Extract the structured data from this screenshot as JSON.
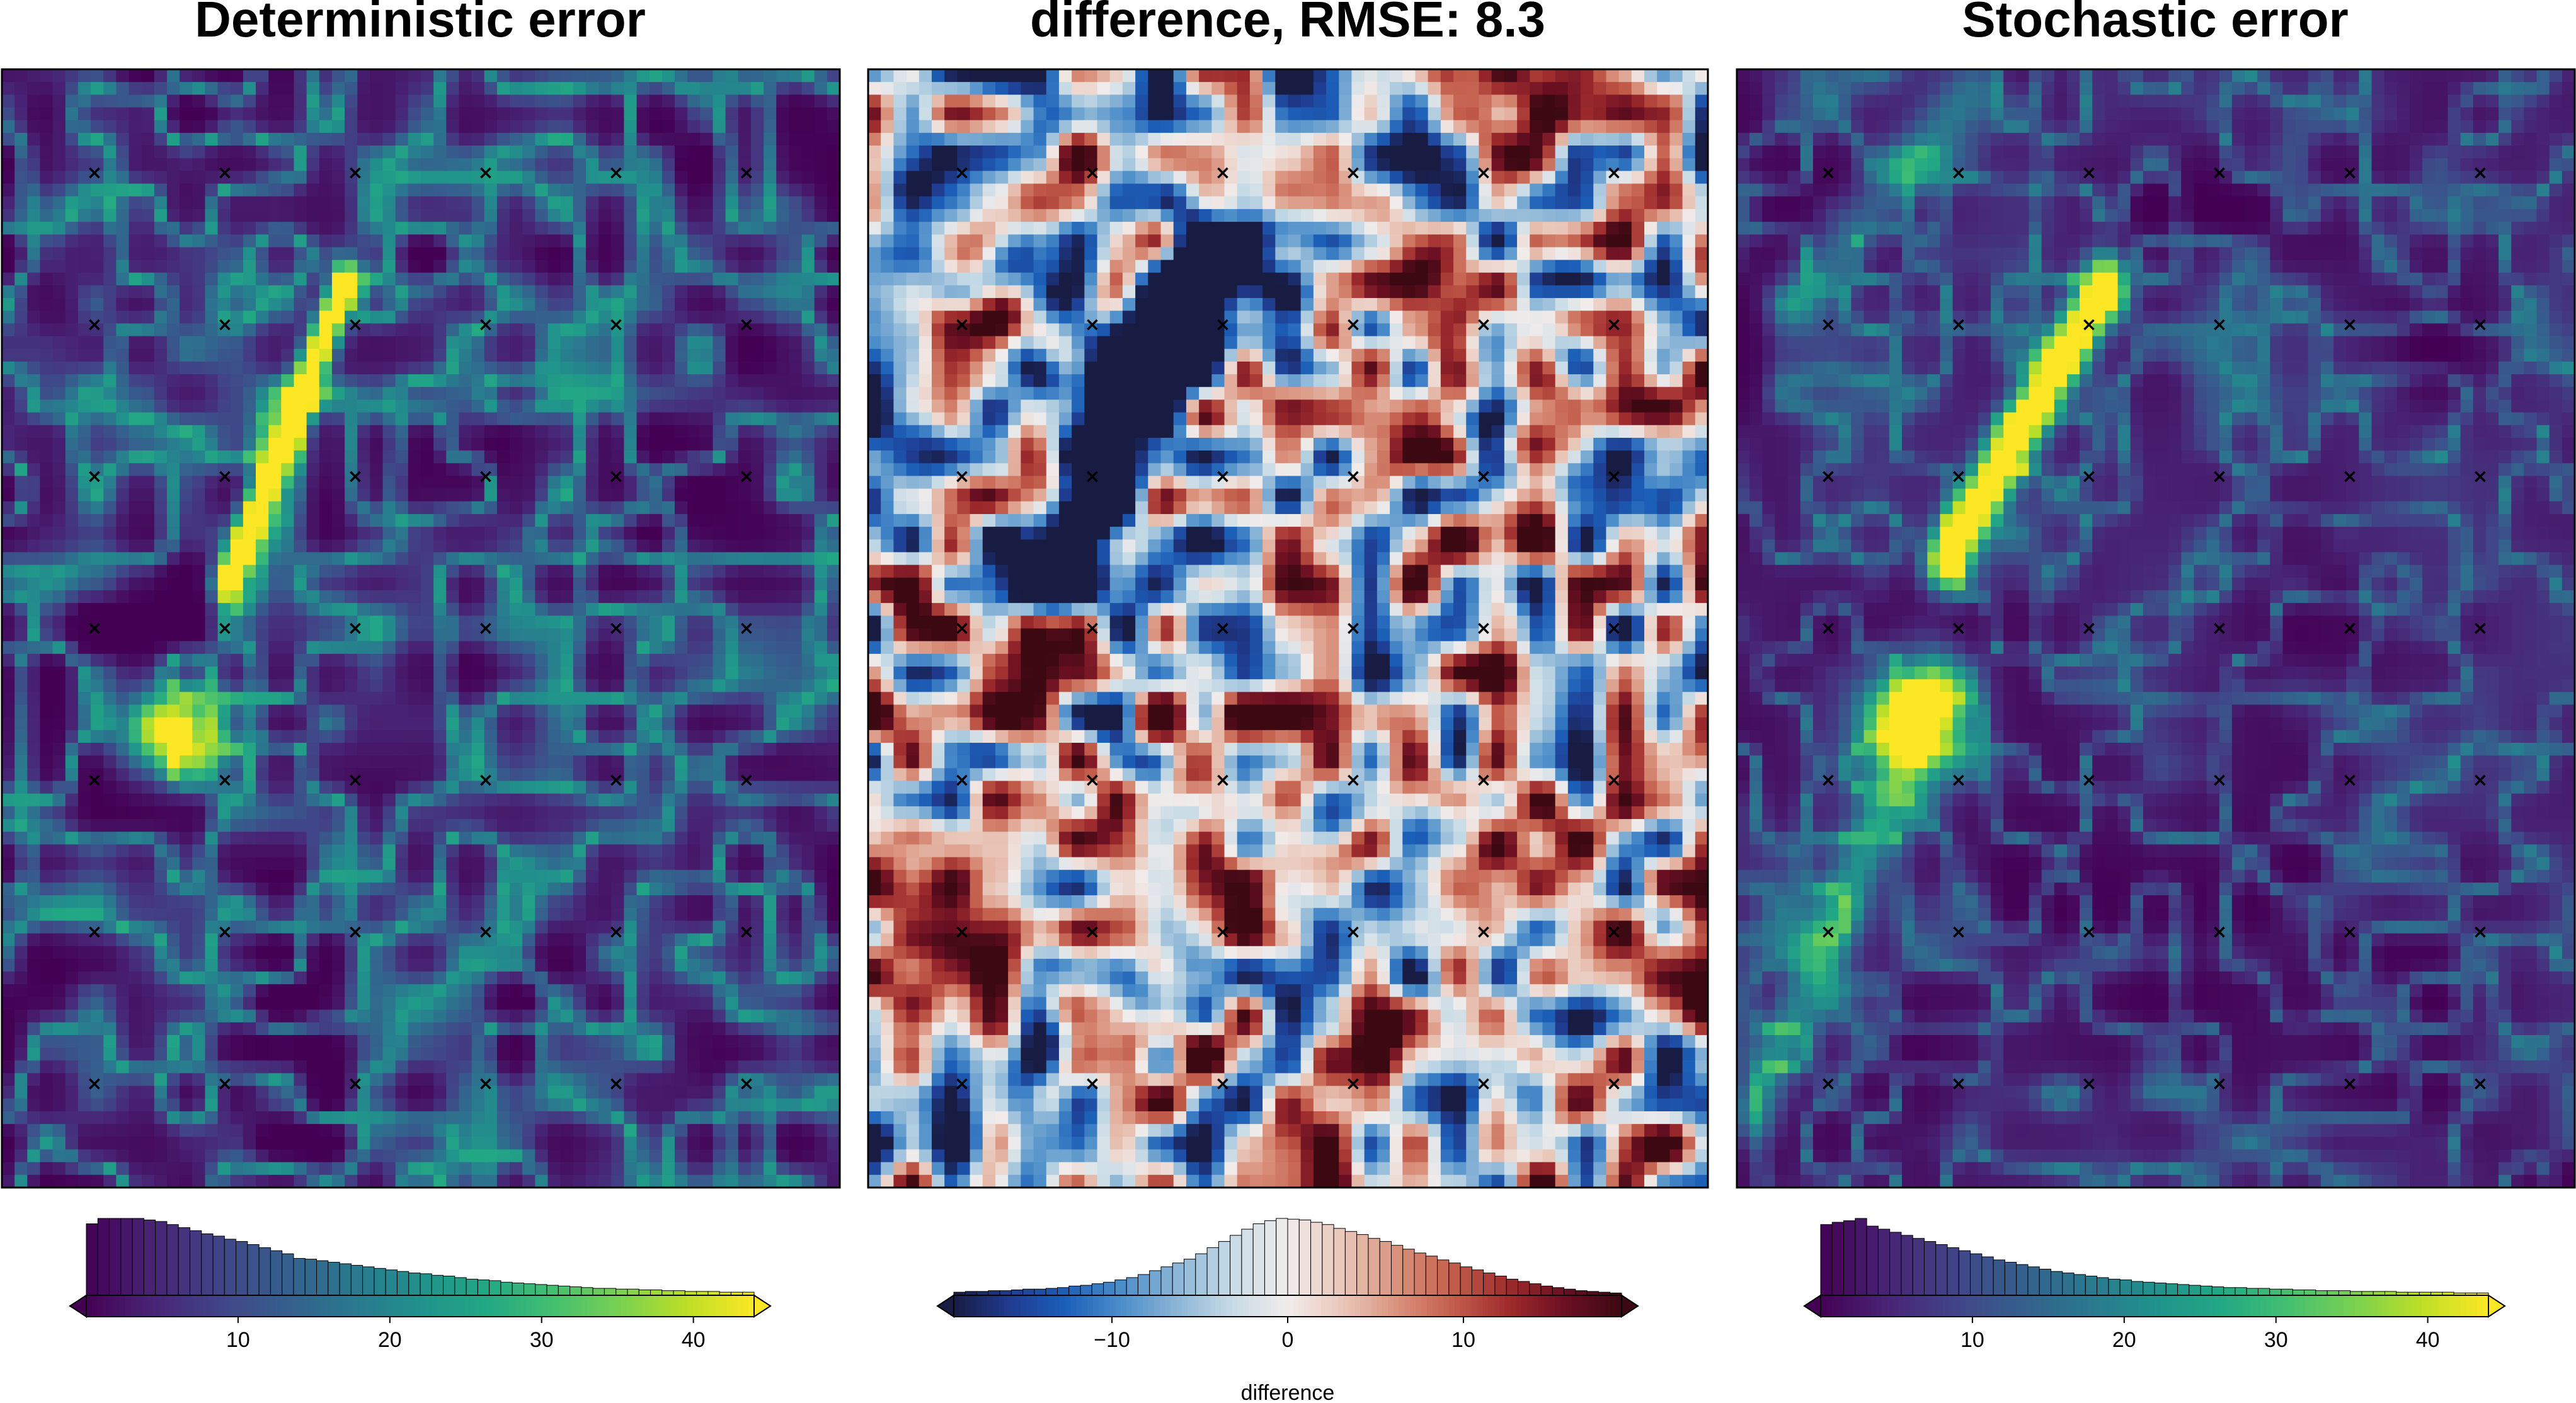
{
  "chart_data": [
    {
      "type": "heatmap",
      "title": "Deterministic error",
      "colormap": "viridis",
      "color_range": [
        0,
        44
      ],
      "grid": false,
      "markers": {
        "symbol": "×",
        "rows": 7,
        "cols": 6
      },
      "colorbar": {
        "ticks": [
          10,
          20,
          30,
          40
        ],
        "tick_labels": [
          "10",
          "20",
          "30",
          "40"
        ],
        "label": "",
        "histogram": [
          0.93,
          1.0,
          1.0,
          1.0,
          1.0,
          0.98,
          0.96,
          0.92,
          0.88,
          0.84,
          0.8,
          0.77,
          0.73,
          0.7,
          0.66,
          0.62,
          0.58,
          0.54,
          0.48,
          0.47,
          0.45,
          0.43,
          0.41,
          0.39,
          0.37,
          0.35,
          0.33,
          0.31,
          0.29,
          0.28,
          0.26,
          0.25,
          0.23,
          0.21,
          0.2,
          0.19,
          0.17,
          0.16,
          0.15,
          0.14,
          0.13,
          0.12,
          0.11,
          0.1,
          0.09,
          0.09,
          0.08,
          0.08,
          0.07,
          0.07,
          0.06,
          0.06,
          0.05,
          0.05,
          0.05,
          0.04,
          0.04,
          0.04
        ]
      }
    },
    {
      "type": "heatmap",
      "title": "difference, RMSE: 8.3",
      "colormap": "balance",
      "color_range": [
        -19,
        19
      ],
      "grid": false,
      "markers": {
        "symbol": "×",
        "rows": 7,
        "cols": 6
      },
      "colorbar": {
        "ticks": [
          -10,
          0,
          10
        ],
        "tick_labels": [
          "−10",
          "0",
          "10"
        ],
        "label": "difference",
        "histogram": [
          0.04,
          0.05,
          0.05,
          0.06,
          0.06,
          0.07,
          0.08,
          0.08,
          0.09,
          0.1,
          0.12,
          0.13,
          0.15,
          0.17,
          0.2,
          0.23,
          0.27,
          0.32,
          0.37,
          0.42,
          0.47,
          0.54,
          0.62,
          0.7,
          0.78,
          0.86,
          0.93,
          0.97,
          1.0,
          0.99,
          0.98,
          0.95,
          0.92,
          0.87,
          0.83,
          0.79,
          0.74,
          0.7,
          0.65,
          0.6,
          0.55,
          0.51,
          0.46,
          0.42,
          0.37,
          0.33,
          0.29,
          0.25,
          0.21,
          0.18,
          0.15,
          0.12,
          0.1,
          0.08,
          0.06,
          0.05,
          0.04,
          0.03
        ]
      }
    },
    {
      "type": "heatmap",
      "title": "Stochastic error",
      "colormap": "viridis",
      "color_range": [
        0,
        44
      ],
      "grid": false,
      "markers": {
        "symbol": "×",
        "rows": 7,
        "cols": 6
      },
      "colorbar": {
        "ticks": [
          10,
          20,
          30,
          40
        ],
        "tick_labels": [
          "10",
          "20",
          "30",
          "40"
        ],
        "label": "",
        "histogram": [
          0.92,
          0.95,
          0.97,
          1.0,
          0.9,
          0.86,
          0.82,
          0.78,
          0.74,
          0.7,
          0.66,
          0.62,
          0.58,
          0.54,
          0.5,
          0.46,
          0.43,
          0.4,
          0.37,
          0.34,
          0.31,
          0.29,
          0.27,
          0.25,
          0.23,
          0.21,
          0.2,
          0.18,
          0.17,
          0.16,
          0.15,
          0.14,
          0.13,
          0.12,
          0.11,
          0.1,
          0.1,
          0.09,
          0.09,
          0.08,
          0.08,
          0.07,
          0.07,
          0.06,
          0.06,
          0.06,
          0.05,
          0.05,
          0.05,
          0.05,
          0.04,
          0.04,
          0.04,
          0.04,
          0.04,
          0.03,
          0.03,
          0.03
        ]
      }
    }
  ]
}
